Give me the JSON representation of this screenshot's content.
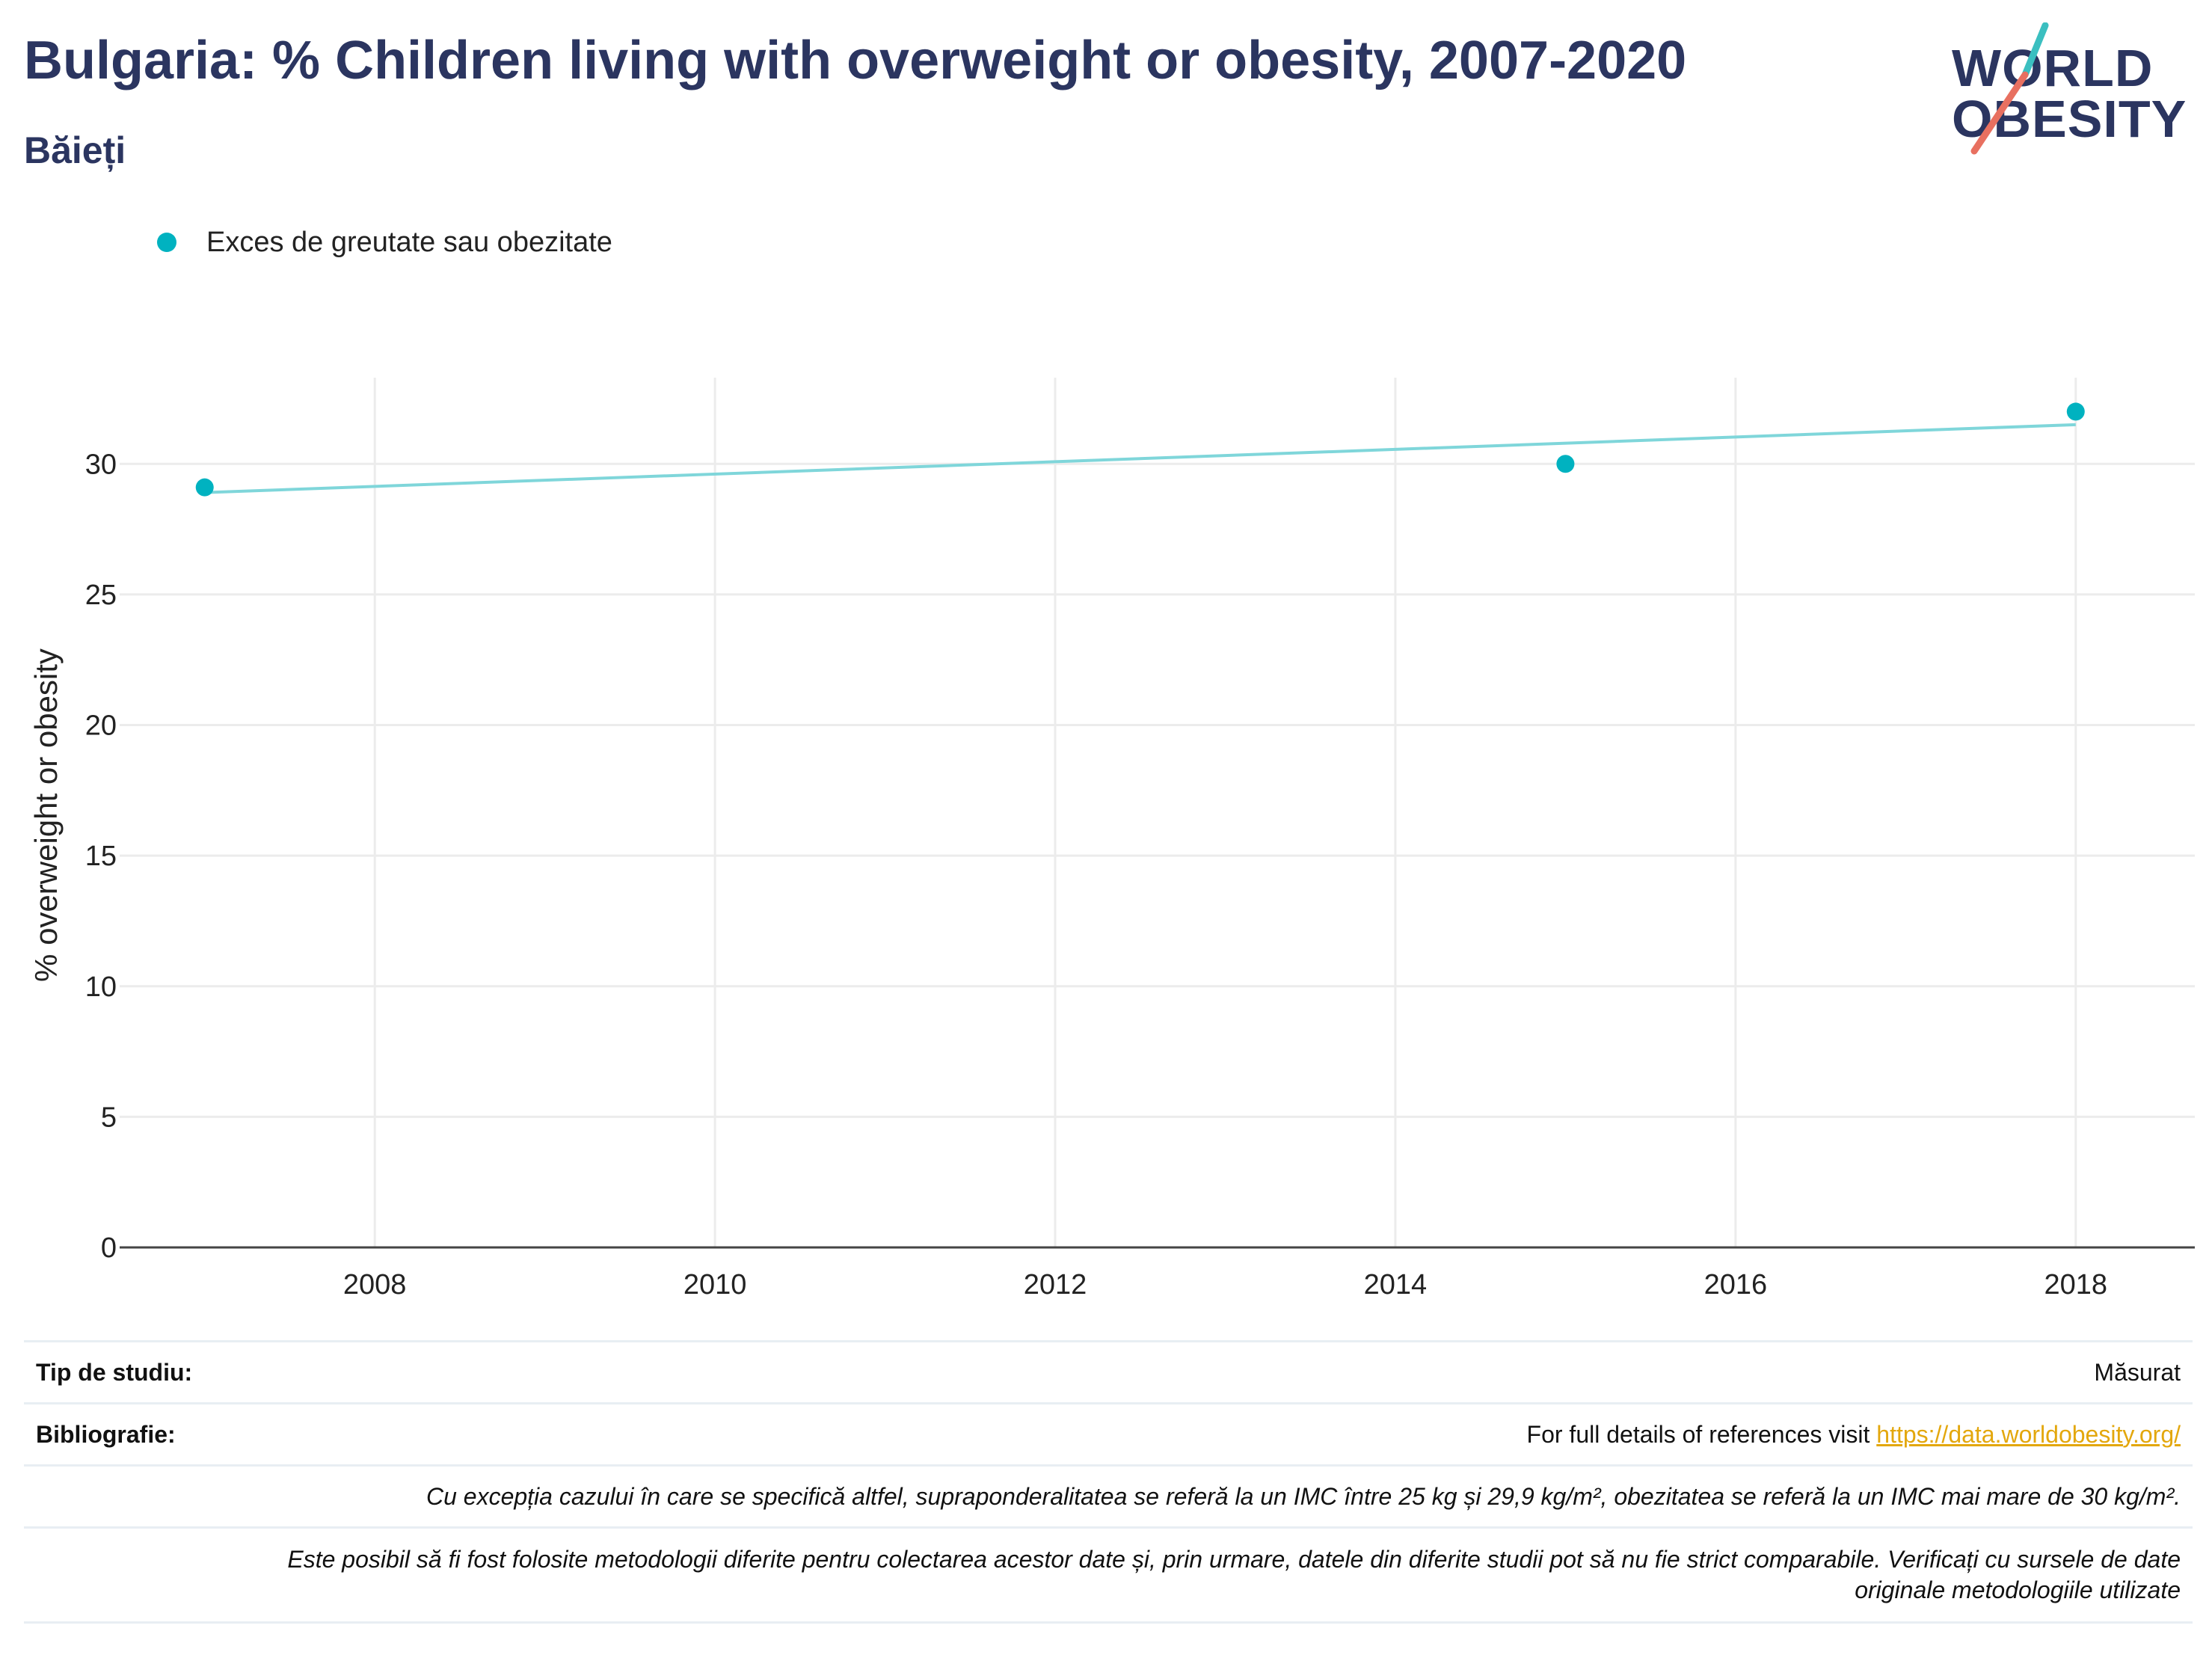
{
  "header": {
    "title": "Bulgaria: % Children living with overweight or obesity, 2007-2020",
    "subtitle": "Băieți"
  },
  "logo": {
    "line1": "WORLD",
    "line2": "OBESITY",
    "colors": {
      "text": "#2b3560",
      "slash_top": "#3bbfc0",
      "slash_bottom": "#e87060"
    }
  },
  "legend": {
    "label": "Exces de greutate sau obezitate",
    "color": "#00b2c0"
  },
  "chart_data": {
    "type": "scatter",
    "title": "Bulgaria: % Children living with overweight or obesity, 2007-2020",
    "subtitle": "Băieți",
    "xlabel": "",
    "ylabel": "% overweight or obesity",
    "xlim": [
      2006.5,
      2018.7
    ],
    "ylim": [
      0,
      33.3
    ],
    "x_ticks": [
      2008,
      2010,
      2012,
      2014,
      2016,
      2018
    ],
    "y_ticks": [
      0,
      5,
      10,
      15,
      20,
      25,
      30
    ],
    "grid": true,
    "legend_position": "top-left",
    "series": [
      {
        "name": "Exces de greutate sau obezitate",
        "color": "#00b2c0",
        "points": [
          {
            "x": 2007,
            "y": 29.1
          },
          {
            "x": 2015,
            "y": 30.0
          },
          {
            "x": 2018,
            "y": 32.0
          }
        ]
      }
    ],
    "trendline": {
      "color": "#7fd6da",
      "from": {
        "x": 2007,
        "y": 28.9
      },
      "to": {
        "x": 2018,
        "y": 31.5
      }
    }
  },
  "footer": {
    "study_type_label": "Tip de studiu:",
    "study_type_value": "Măsurat",
    "bibliography_label": "Bibliografie:",
    "bibliography_text": "For full details of references visit ",
    "bibliography_link": "https://data.worldobesity.org/",
    "note_bmi": "Cu excepția cazului în care se specifică altfel, supraponderalitatea se referă la un IMC între 25 kg și 29,9 kg/m², obezitatea se referă la un IMC mai mare de 30 kg/m².",
    "note_methods_line1": "Este posibil să fi fost folosite metodologii diferite pentru colectarea acestor date și, prin urmare, datele din diferite studii pot să nu fie strict comparabile. Verificați cu sursele de date",
    "note_methods_line2": "originale metodologiile utilizate"
  }
}
